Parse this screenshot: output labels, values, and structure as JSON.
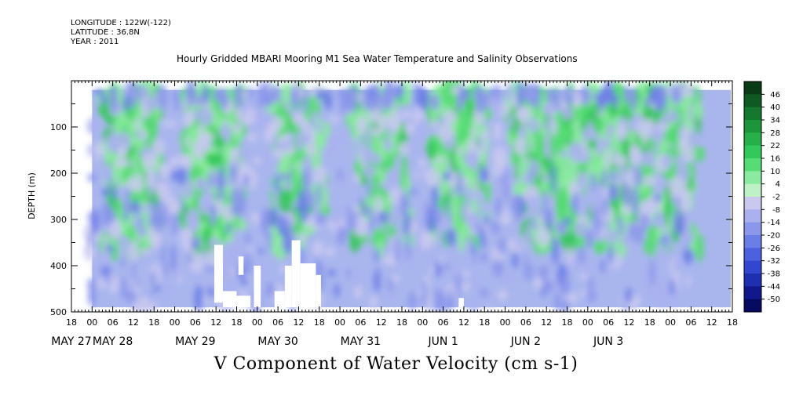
{
  "meta": {
    "longitude": "LONGITUDE : 122W(-122)",
    "latitude": "LATITUDE : 36.8N",
    "year": "YEAR : 2011"
  },
  "title": "Hourly Gridded MBARI Mooring M1 Sea Water Temperature and Salinity Observations",
  "bottom_title": "V Component of Water Velocity (cm s-1)",
  "chart_data": {
    "type": "heatmap",
    "title": "Hourly Gridded MBARI Mooring M1 Sea Water Temperature and Salinity Observations",
    "xlabel": "",
    "ylabel": "DEPTH (m)",
    "variable": "V Component of Water Velocity (cm s-1)",
    "x_range_hours": [
      -6,
      174
    ],
    "y_range": [
      500,
      0
    ],
    "y_inverted": true,
    "y_ticks": [
      100,
      200,
      300,
      400,
      500
    ],
    "x_hour_ticks": [
      {
        "t": -6,
        "label": "18"
      },
      {
        "t": 0,
        "label": "00"
      },
      {
        "t": 6,
        "label": "06"
      },
      {
        "t": 12,
        "label": "12"
      },
      {
        "t": 18,
        "label": "18"
      },
      {
        "t": 24,
        "label": "00"
      },
      {
        "t": 30,
        "label": "06"
      },
      {
        "t": 36,
        "label": "12"
      },
      {
        "t": 42,
        "label": "18"
      },
      {
        "t": 48,
        "label": "00"
      },
      {
        "t": 54,
        "label": "06"
      },
      {
        "t": 60,
        "label": "12"
      },
      {
        "t": 66,
        "label": "18"
      },
      {
        "t": 72,
        "label": "00"
      },
      {
        "t": 78,
        "label": "06"
      },
      {
        "t": 84,
        "label": "12"
      },
      {
        "t": 90,
        "label": "18"
      },
      {
        "t": 96,
        "label": "00"
      },
      {
        "t": 102,
        "label": "06"
      },
      {
        "t": 108,
        "label": "12"
      },
      {
        "t": 114,
        "label": "18"
      },
      {
        "t": 120,
        "label": "00"
      },
      {
        "t": 126,
        "label": "06"
      },
      {
        "t": 132,
        "label": "12"
      },
      {
        "t": 138,
        "label": "18"
      },
      {
        "t": 144,
        "label": "00"
      },
      {
        "t": 150,
        "label": "06"
      },
      {
        "t": 156,
        "label": "12"
      },
      {
        "t": 162,
        "label": "18"
      },
      {
        "t": 168,
        "label": "00"
      },
      {
        "t": 174,
        "label": "06"
      },
      {
        "t": 180,
        "label": "12"
      },
      {
        "t": 186,
        "label": "18"
      }
    ],
    "x_date_labels": [
      {
        "t": -6,
        "label": "MAY 27"
      },
      {
        "t": 6,
        "label": "MAY 28"
      },
      {
        "t": 30,
        "label": "MAY 29"
      },
      {
        "t": 54,
        "label": "MAY 30"
      },
      {
        "t": 78,
        "label": "MAY 31"
      },
      {
        "t": 102,
        "label": "JUN  1"
      },
      {
        "t": 126,
        "label": "JUN  2"
      },
      {
        "t": 150,
        "label": "JUN  3"
      }
    ],
    "colorbar": {
      "levels": [
        "46",
        "40",
        "34",
        "28",
        "22",
        "16",
        "10",
        "4",
        "-2",
        "-8",
        "-14",
        "-20",
        "-26",
        "-32",
        "-38",
        "-44",
        "-50"
      ],
      "colors": [
        "#0a3a16",
        "#0f5a22",
        "#14782e",
        "#1d963b",
        "#27b04a",
        "#33c85a",
        "#55dc74",
        "#8aea9f",
        "#bdf2c7",
        "#c9c9f0",
        "#aab1ee",
        "#8b97ea",
        "#6b7de6",
        "#4c61dd",
        "#3346cf",
        "#1e2fb0",
        "#10188c",
        "#060a60"
      ]
    },
    "data_extent_depth_m": [
      20,
      490
    ],
    "dominant_values": "mostly -8 to 16 cm s-1; green (positive, 4 to 22) bands in upper 300 m around each day, blue (negative) dominant below",
    "missing_data_regions": "white gaps near 350-490 m on May 29 and May 30, small gap near 470 m on Jun 1"
  }
}
